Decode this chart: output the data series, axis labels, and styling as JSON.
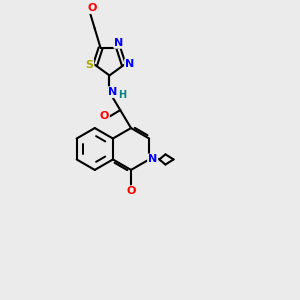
{
  "background_color": "#ebebeb",
  "bond_color": "#000000",
  "atom_colors": {
    "O": "#ff0000",
    "N": "#0000ff",
    "S": "#aaaa00",
    "H": "#008080",
    "C": "#000000"
  },
  "scale": 1.0
}
